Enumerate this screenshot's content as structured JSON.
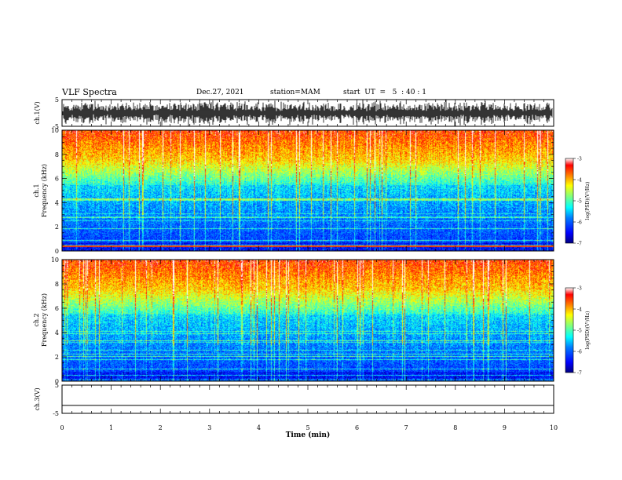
{
  "header": {
    "title": "VLF Spectra",
    "date": "Dec.27, 2021",
    "station": "station=MAM",
    "start": "start  UT  =   5  : 40 : 1"
  },
  "chart_data": [
    {
      "type": "line",
      "panel": "ch1-waveform",
      "ylabel": "ch.1(V)",
      "ylim": [
        -5,
        5
      ],
      "yticks": [
        "5",
        "-5"
      ],
      "xlim": [
        0,
        10
      ],
      "description_pattern": "dense impulsive bursts between about -3 and 3 V"
    },
    {
      "type": "heatmap",
      "panel": "ch1-spectrogram",
      "ylabel": "ch.1\nFrequency  (kHz)",
      "ylim": [
        0,
        10
      ],
      "yticks": [
        "0",
        "2",
        "4",
        "6",
        "8",
        "10"
      ],
      "xlim": [
        0,
        10
      ],
      "colorbar": {
        "label": "log(PSD)(V²/Hz)",
        "range": [
          -7,
          -3
        ],
        "ticks": [
          "-3",
          "-4",
          "-5",
          "-6",
          "-7"
        ]
      }
    },
    {
      "type": "heatmap",
      "panel": "ch2-spectrogram",
      "ylabel": "ch.2\nFrequency  (kHz)",
      "ylim": [
        0,
        10
      ],
      "yticks": [
        "0",
        "2",
        "4",
        "6",
        "8",
        "10"
      ],
      "xlim": [
        0,
        10
      ],
      "colorbar": {
        "label": "log(PSD)(V²/Hz)",
        "range": [
          -7,
          -3
        ],
        "ticks": [
          "-3",
          "-4",
          "-5",
          "-6",
          "-7"
        ]
      }
    },
    {
      "type": "line",
      "panel": "ch3-waveform",
      "ylabel": "ch.3(V)",
      "ylim": [
        -5,
        5
      ],
      "yticks": [
        "5",
        "-5"
      ],
      "xlim": [
        0,
        10
      ],
      "constant_value": -2.2
    }
  ],
  "xaxis": {
    "label": "Time  (min)",
    "ticks": [
      "0",
      "1",
      "2",
      "3",
      "4",
      "5",
      "6",
      "7",
      "8",
      "9",
      "10"
    ]
  },
  "colors": {
    "ink": "#000000",
    "cmap": [
      "#00007f",
      "#0000ff",
      "#007fff",
      "#00ffff",
      "#7fff7f",
      "#ffff00",
      "#ff7f00",
      "#ff0000",
      "#ffffff"
    ]
  }
}
